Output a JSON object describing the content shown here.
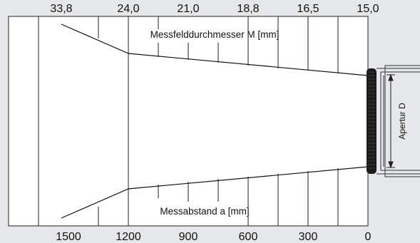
{
  "diagram": {
    "top_axis": {
      "label": "Messfelddurchmesser M [mm]",
      "ticks": [
        "33,8",
        "24,0",
        "21,0",
        "18,8",
        "16,5",
        "15,0"
      ]
    },
    "bottom_axis": {
      "label": "Messabstand a [mm]",
      "ticks": [
        "1500",
        "1200",
        "900",
        "600",
        "300",
        "0"
      ]
    },
    "aperture_label": "Apertur D",
    "colors": {
      "background": "#e6e7e8",
      "panel": "#ffffff",
      "line": "#222222",
      "lens": "#1b1b1b"
    }
  }
}
